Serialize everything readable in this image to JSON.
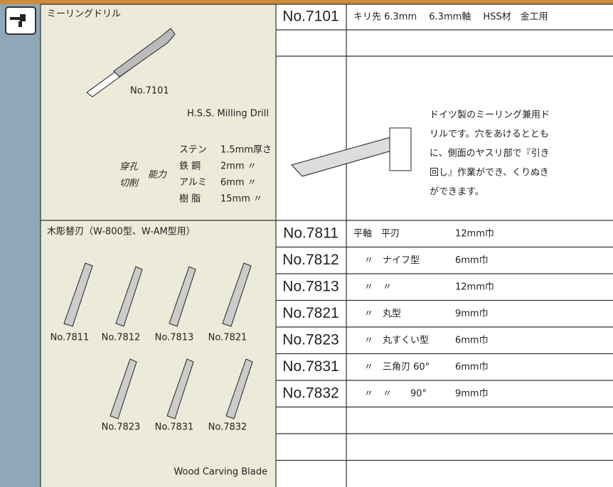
{
  "section1": {
    "title": "ミーリングドリル",
    "image_label": "No.7101",
    "english": "H.S.S. Milling Drill",
    "capacity_labels": [
      "穿孔",
      "切削",
      "能力"
    ],
    "materials": [
      [
        "ステン",
        "1.5mm厚さ"
      ],
      [
        "鉄 鋼",
        "2mm 〃"
      ],
      [
        "アルミ",
        "6mm 〃"
      ],
      [
        "樹 脂",
        "15mm 〃"
      ]
    ],
    "rows": [
      {
        "no": "No.7101",
        "desc": "キリ先 6.3mm　 6.3mm軸　 HSS材　金工用"
      }
    ],
    "description": [
      "ドイツ製のミーリング兼用ド",
      "リルです。穴をあけるととも",
      "に、側面のヤスリ部で『引き",
      "回し』作業ができ、くりぬき",
      "ができます。"
    ]
  },
  "section2": {
    "title": "木彫替刃（W-800型、W-AM型用）",
    "image_labels": [
      "No.7811",
      "No.7812",
      "No.7813",
      "No.7821",
      "No.7823",
      "No.7831",
      "No.7832"
    ],
    "english": "Wood Carving Blade",
    "rows": [
      {
        "no": "No.7811",
        "desc": [
          "平軸　平刃",
          "",
          "12mm巾"
        ]
      },
      {
        "no": "No.7812",
        "desc": [
          "〃",
          "ナイフ型",
          "6mm巾"
        ]
      },
      {
        "no": "No.7813",
        "desc": [
          "〃",
          "〃",
          "12mm巾"
        ]
      },
      {
        "no": "No.7821",
        "desc": [
          "〃",
          "丸型",
          "9mm巾"
        ]
      },
      {
        "no": "No.7823",
        "desc": [
          "〃",
          "丸すくい型",
          "6mm巾"
        ]
      },
      {
        "no": "No.7831",
        "desc": [
          "〃",
          "三角刃 60°",
          "6mm巾"
        ]
      },
      {
        "no": "No.7832",
        "desc": [
          "〃",
          "〃　　90°",
          "9mm巾"
        ]
      }
    ]
  }
}
